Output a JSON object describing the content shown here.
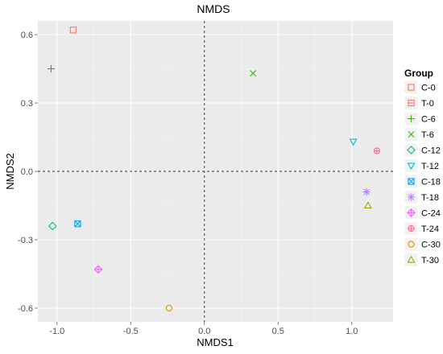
{
  "chart_data": {
    "type": "scatter",
    "title": "NMDS",
    "xlabel": "NMDS1",
    "ylabel": "NMDS2",
    "xlim": [
      -1.13,
      1.28
    ],
    "ylim": [
      -0.66,
      0.66
    ],
    "x_ticks": [
      -1.0,
      -0.5,
      0.0,
      0.5,
      1.0
    ],
    "x_tick_labels": [
      "-1.0",
      "-0.5",
      "0.0",
      "0.5",
      "1.0"
    ],
    "y_ticks": [
      -0.6,
      -0.3,
      0.0,
      0.3,
      0.6
    ],
    "y_tick_labels": [
      "-0.6",
      "-0.3",
      "0.0",
      "0.3",
      "0.6"
    ],
    "grid": true,
    "reference_lines": {
      "x": 0,
      "y": 0,
      "style": "dashed"
    },
    "legend": {
      "title": "Group",
      "placement": "right"
    },
    "series": [
      {
        "name": "C-0",
        "shape": "square-open",
        "color": "#F8766D",
        "x": -0.89,
        "y": 0.62
      },
      {
        "name": "T-0",
        "shape": "square-boxed",
        "color": "#E76BF3",
        "x": null,
        "y": null,
        "legend_color": "#F8766D"
      },
      {
        "name": "C-6",
        "shape": "plus",
        "color": "#39B600",
        "x": -1.04,
        "y": 0.45
      },
      {
        "name": "T-6",
        "shape": "cross",
        "color": "#39B600",
        "x": 0.33,
        "y": 0.43
      },
      {
        "name": "C-12",
        "shape": "diamond-open",
        "color": "#00BF7D",
        "x": -1.03,
        "y": -0.24
      },
      {
        "name": "T-12",
        "shape": "triangle-down",
        "color": "#00BFC4",
        "x": 1.01,
        "y": 0.13
      },
      {
        "name": "C-18",
        "shape": "square-cross",
        "color": "#00A5FF",
        "x": -0.86,
        "y": -0.23
      },
      {
        "name": "T-18",
        "shape": "asterisk",
        "color": "#B983FF",
        "x": 1.1,
        "y": -0.09
      },
      {
        "name": "C-24",
        "shape": "diamond-plus",
        "color": "#E76BF3",
        "x": -0.72,
        "y": -0.43
      },
      {
        "name": "T-24",
        "shape": "circle-plus",
        "color": "#FF67A4",
        "x": 1.17,
        "y": 0.09
      },
      {
        "name": "C-30",
        "shape": "circle-open",
        "color": "#D89000",
        "x": -0.24,
        "y": -0.6
      },
      {
        "name": "T-30",
        "shape": "triangle-up",
        "color": "#A3A500",
        "x": 1.11,
        "y": -0.15
      }
    ]
  }
}
